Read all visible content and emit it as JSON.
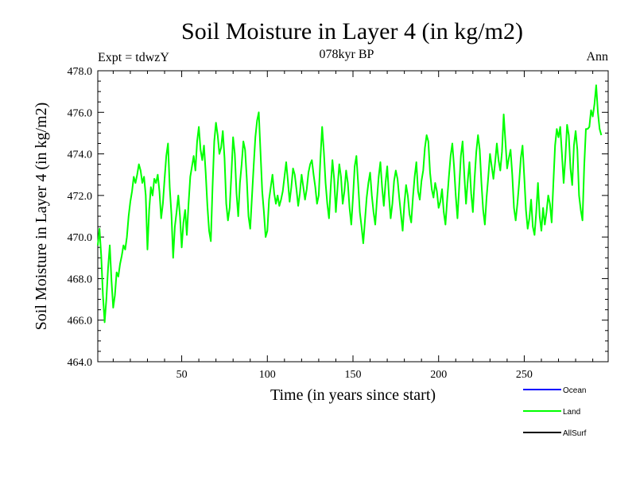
{
  "header": {
    "title": "Soil Moisture in Layer 4 (in kg/m2)",
    "subtitle": "078kyr BP",
    "expt": "Expt = tdwzY",
    "period": "Ann"
  },
  "colors": {
    "ocean": "#0000ff",
    "land": "#00ff00",
    "allsurf": "#000000",
    "axis": "#000000"
  },
  "chart_data": {
    "type": "line",
    "title": "Soil Moisture in Layer 4 (in kg/m2)",
    "subtitle": "078kyr BP",
    "xlabel": "Time (in years since start)",
    "ylabel": "Soil Moisture in Layer 4 (in kg/m2)",
    "xlim": [
      1,
      299
    ],
    "ylim": [
      464.0,
      478.0
    ],
    "x_ticks": [
      50,
      100,
      150,
      200,
      250
    ],
    "x_tick_labels": [
      "50",
      "100",
      "150",
      "200",
      "250"
    ],
    "y_ticks": [
      464,
      466,
      468,
      470,
      472,
      474,
      476,
      478
    ],
    "y_tick_labels": [
      "464.0",
      "466.0",
      "468.0",
      "470.0",
      "472.0",
      "474.0",
      "476.0",
      "478.0"
    ],
    "grid": false,
    "legend_position": "bottom-right",
    "legend": [
      "Ocean",
      "Land",
      "AllSurf"
    ],
    "series": [
      {
        "name": "Land",
        "color": "#00ff00",
        "x_start": 1,
        "x_step": 1,
        "values": [
          469.6,
          470.4,
          469.1,
          467.2,
          465.9,
          467.0,
          468.5,
          469.6,
          467.9,
          466.6,
          467.2,
          468.3,
          468.1,
          468.7,
          469.1,
          469.6,
          469.4,
          470.0,
          471.0,
          471.7,
          472.2,
          472.9,
          472.6,
          473.0,
          473.5,
          473.2,
          472.6,
          472.9,
          472.0,
          469.4,
          471.3,
          472.4,
          472.0,
          472.8,
          472.6,
          473.0,
          472.2,
          470.9,
          471.6,
          472.8,
          473.9,
          474.5,
          472.4,
          471.1,
          469.0,
          470.5,
          471.2,
          472.0,
          471.0,
          469.5,
          470.7,
          471.3,
          470.1,
          471.6,
          472.9,
          473.4,
          473.9,
          473.2,
          474.6,
          475.3,
          474.2,
          473.7,
          474.4,
          473.1,
          471.5,
          470.3,
          469.8,
          472.4,
          474.6,
          475.5,
          474.9,
          474.0,
          474.3,
          475.1,
          473.8,
          471.6,
          470.8,
          471.4,
          473.0,
          474.8,
          474.0,
          472.1,
          471.0,
          472.6,
          473.5,
          474.6,
          474.2,
          472.8,
          471.0,
          470.4,
          471.9,
          473.4,
          474.8,
          475.6,
          476.0,
          474.1,
          472.2,
          471.2,
          470.0,
          470.3,
          471.8,
          472.4,
          473.0,
          472.1,
          471.6,
          472.0,
          471.5,
          471.8,
          472.2,
          472.9,
          473.6,
          472.7,
          471.7,
          472.4,
          473.3,
          473.0,
          472.3,
          471.5,
          472.1,
          473.0,
          472.4,
          471.8,
          472.3,
          473.1,
          473.5,
          473.7,
          473.0,
          472.4,
          471.6,
          472.0,
          473.8,
          475.3,
          474.1,
          472.6,
          471.6,
          470.9,
          472.4,
          473.7,
          472.8,
          471.2,
          472.4,
          473.5,
          472.9,
          471.6,
          472.2,
          473.2,
          472.6,
          471.4,
          470.6,
          471.9,
          473.4,
          473.9,
          472.6,
          471.2,
          470.5,
          469.7,
          470.8,
          471.9,
          472.6,
          473.1,
          472.0,
          471.2,
          470.6,
          471.8,
          472.9,
          473.6,
          472.4,
          471.5,
          472.6,
          473.4,
          472.0,
          470.9,
          471.6,
          472.7,
          473.2,
          472.8,
          471.9,
          471.1,
          470.3,
          471.6,
          472.5,
          472.0,
          471.1,
          470.7,
          471.9,
          472.9,
          473.6,
          472.2,
          471.8,
          472.7,
          473.2,
          474.3,
          474.9,
          474.6,
          473.1,
          472.3,
          471.9,
          472.6,
          472.2,
          471.4,
          471.7,
          472.3,
          471.2,
          470.6,
          471.8,
          472.9,
          473.9,
          474.5,
          473.4,
          472.0,
          470.9,
          472.4,
          473.9,
          474.6,
          473.0,
          471.6,
          472.7,
          473.6,
          472.1,
          471.2,
          472.8,
          474.1,
          474.9,
          474.2,
          472.6,
          471.3,
          470.6,
          471.9,
          472.9,
          474.0,
          473.4,
          472.8,
          473.6,
          474.5,
          473.7,
          473.2,
          474.1,
          475.9,
          474.6,
          473.3,
          473.8,
          474.2,
          473.0,
          471.4,
          470.8,
          471.6,
          472.6,
          473.8,
          474.4,
          472.9,
          471.3,
          470.4,
          470.9,
          471.8,
          470.5,
          470.1,
          471.2,
          472.6,
          471.0,
          470.3,
          471.4,
          470.6,
          471.2,
          472.0,
          471.6,
          470.7,
          472.6,
          474.4,
          475.2,
          474.8,
          475.3,
          474.0,
          472.6,
          473.8,
          475.4,
          474.9,
          473.3,
          472.5,
          474.4,
          475.1,
          474.2,
          472.0,
          471.3,
          470.8,
          473.4,
          475.2,
          475.2,
          475.3,
          476.1,
          475.8,
          476.4,
          477.3,
          476.0,
          475.2,
          474.9
        ]
      },
      {
        "name": "Ocean",
        "color": "#0000ff",
        "values": []
      },
      {
        "name": "AllSurf",
        "color": "#000000",
        "values": []
      }
    ]
  }
}
